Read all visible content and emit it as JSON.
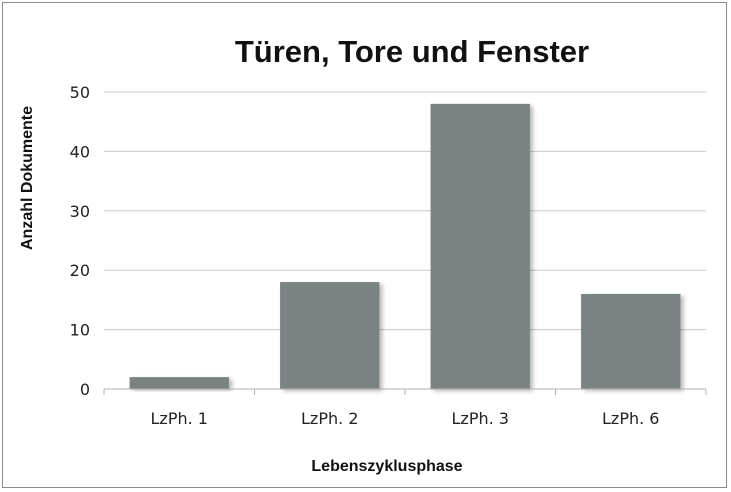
{
  "chart_data": {
    "type": "bar",
    "title": "Türen, Tore und Fenster",
    "xlabel": "Lebenszyklusphase",
    "ylabel": "Anzahl Dokumente",
    "categories": [
      "LzPh. 1",
      "LzPh. 2",
      "LzPh. 3",
      "LzPh. 6"
    ],
    "values": [
      2,
      18,
      48,
      16
    ],
    "ylim": [
      0,
      50
    ],
    "yticks": [
      "0",
      "10",
      "20",
      "30",
      "40",
      "50"
    ],
    "grid": true,
    "legend": "none",
    "bar_color": "#7a8382",
    "gridline_color": "#c8c8c8"
  }
}
